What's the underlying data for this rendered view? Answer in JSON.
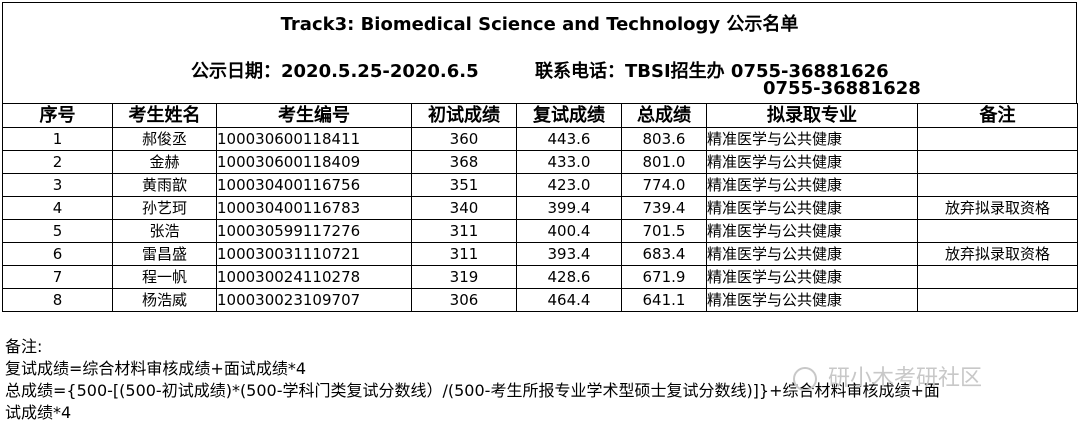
{
  "header": {
    "title": "Track3: Biomedical Science and Technology 公示名单",
    "date_label": "公示日期：2020.5.25-2020.6.5",
    "contact_label": "联系电话：TBSI招生办 0755-36881626",
    "contact_phone2": "0755-36881628"
  },
  "table": {
    "columns": [
      "序号",
      "考生姓名",
      "考生编号",
      "初试成绩",
      "复试成绩",
      "总成绩",
      "拟录取专业",
      "备注"
    ],
    "rows": [
      [
        "1",
        "郝俊丞",
        "100030600118411",
        "360",
        "443.6",
        "803.6",
        "精准医学与公共健康",
        ""
      ],
      [
        "2",
        "金赫",
        "100030600118409",
        "368",
        "433.0",
        "801.0",
        "精准医学与公共健康",
        ""
      ],
      [
        "3",
        "黄雨歆",
        "100030400116756",
        "351",
        "423.0",
        "774.0",
        "精准医学与公共健康",
        ""
      ],
      [
        "4",
        "孙艺珂",
        "100030400116783",
        "340",
        "399.4",
        "739.4",
        "精准医学与公共健康",
        "放弃拟录取资格"
      ],
      [
        "5",
        "张浩",
        "100030599117276",
        "311",
        "400.4",
        "701.5",
        "精准医学与公共健康",
        ""
      ],
      [
        "6",
        "雷昌盛",
        "100030031110721",
        "311",
        "393.4",
        "683.4",
        "精准医学与公共健康",
        "放弃拟录取资格"
      ],
      [
        "7",
        "程一帆",
        "100030024110278",
        "319",
        "428.6",
        "671.9",
        "精准医学与公共健康",
        ""
      ],
      [
        "8",
        "杨浩威",
        "100030023109707",
        "306",
        "464.4",
        "641.1",
        "精准医学与公共健康",
        ""
      ]
    ]
  },
  "notes": {
    "heading": "备注:",
    "line1": "复试成绩=综合材料审核成绩+面试成绩*4",
    "line2": "总成绩={500-[(500-初试成绩)*(500-学科门类复试分数线）/(500-考生所报专业学术型硕士复试分数线)]}+综合材料审核成绩+面",
    "line3": "试成绩*4"
  },
  "watermark": {
    "text": "研小木考研社区",
    "icon": "wechat-icon"
  }
}
